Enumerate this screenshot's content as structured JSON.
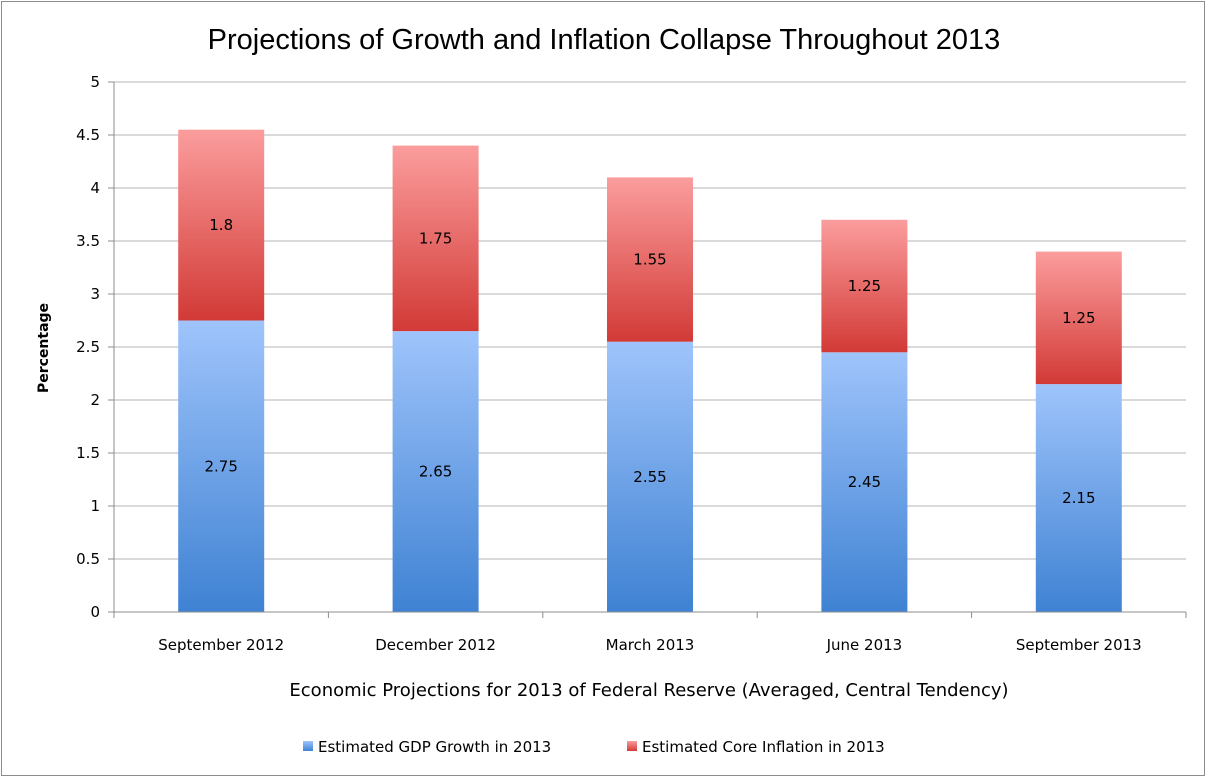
{
  "chart_data": {
    "type": "bar",
    "stacked": true,
    "title": "Projections of Growth and Inflation Collapse Throughout 2013",
    "xlabel": "Economic Projections for 2013 of Federal Reserve (Averaged, Central Tendency)",
    "ylabel": "Percentage",
    "ylim": [
      0,
      5
    ],
    "yticks": [
      "0",
      "0.5",
      "1",
      "1.5",
      "2",
      "2.5",
      "3",
      "3.5",
      "4",
      "4.5",
      "5"
    ],
    "grid": true,
    "legend_position": "bottom",
    "categories": [
      "September 2012",
      "December 2012",
      "March 2013",
      "June 2013",
      "September 2013"
    ],
    "series": [
      {
        "name": "Estimated GDP Growth in 2013",
        "values": [
          2.75,
          2.65,
          2.55,
          2.45,
          2.15
        ],
        "labels": [
          "2.75",
          "2.65",
          "2.55",
          "2.45",
          "2.15"
        ],
        "color_top": "#9fc4fb",
        "color_bottom": "#3f82d3"
      },
      {
        "name": "Estimated Core Inflation in 2013",
        "values": [
          1.8,
          1.75,
          1.55,
          1.25,
          1.25
        ],
        "labels": [
          "1.8",
          "1.75",
          "1.55",
          "1.25",
          "1.25"
        ],
        "color_top": "#fb9d9d",
        "color_bottom": "#d23a36"
      }
    ]
  }
}
